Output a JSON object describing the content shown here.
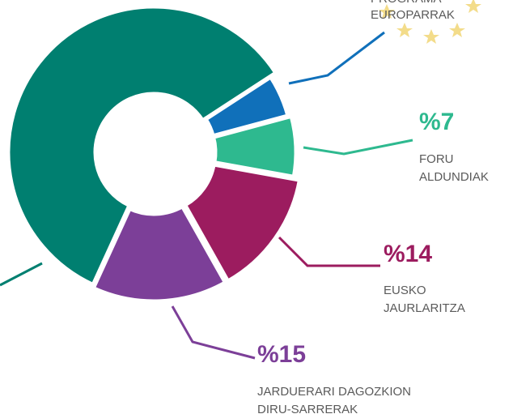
{
  "chart_data": {
    "type": "donut",
    "categories": [
      null,
      [
        "PROGRAMA",
        "EUROPARRAK"
      ],
      [
        "FORU",
        "ALDUNDIAK"
      ],
      [
        "EUSKO",
        "JAURLARITZA"
      ],
      [
        "JARDUERARI DAGOZKION",
        "DIRU-SARRERAK"
      ]
    ],
    "values": [
      59,
      5,
      7,
      14,
      15
    ],
    "value_labels": [
      null,
      null,
      "%7",
      "%14",
      "%15"
    ],
    "colors": [
      "#007f70",
      "#1070ba",
      "#2eb98f",
      "#9c1c5f",
      "#7c3f98"
    ]
  }
}
